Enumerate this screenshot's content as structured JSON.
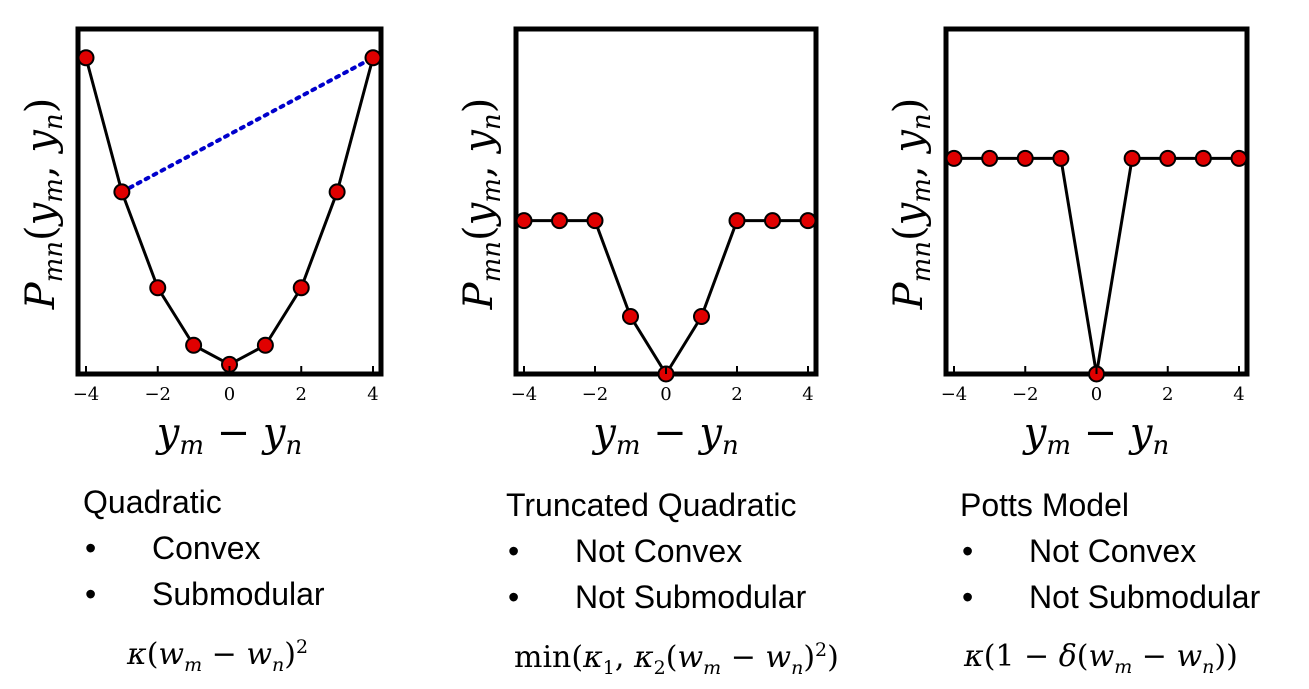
{
  "chart_data": [
    {
      "type": "line",
      "title": "",
      "xlabel": "y_m − y_n",
      "ylabel": "P_mn(y_m, y_n)",
      "xlim": [
        -4,
        4
      ],
      "xticks": [
        "−4",
        "−2",
        "0",
        "2",
        "4"
      ],
      "x": [
        -4,
        -3,
        -2,
        -1,
        0,
        1,
        2,
        3,
        4
      ],
      "series": [
        {
          "values": [
            16,
            9,
            4,
            1,
            0,
            1,
            4,
            9,
            16
          ]
        }
      ],
      "chord": {
        "from": [
          -3,
          9
        ],
        "to": [
          4,
          16
        ],
        "style": "dotted",
        "color": "#0000cc"
      },
      "ylim": [
        -0.5,
        17.5
      ],
      "grid": false,
      "yticks_visible": false
    },
    {
      "type": "line",
      "title": "",
      "xlabel": "y_m − y_n",
      "ylabel": "P_mn(y_m, y_n)",
      "xlim": [
        -4,
        4
      ],
      "xticks": [
        "−4",
        "−2",
        "0",
        "2",
        "4"
      ],
      "x": [
        -4,
        -3,
        -2,
        -1,
        0,
        1,
        2,
        3,
        4
      ],
      "series": [
        {
          "values": [
            4,
            4,
            4,
            1.5,
            0,
            1.5,
            4,
            4,
            4
          ]
        }
      ],
      "ylim": [
        0,
        9
      ],
      "grid": false,
      "yticks_visible": false
    },
    {
      "type": "line",
      "title": "",
      "xlabel": "y_m − y_n",
      "ylabel": "P_mn(y_m, y_n)",
      "xlim": [
        -4,
        4
      ],
      "xticks": [
        "−4",
        "−2",
        "0",
        "2",
        "4"
      ],
      "x": [
        -4,
        -3,
        -2,
        -1,
        0,
        1,
        2,
        3,
        4
      ],
      "series": [
        {
          "values": [
            1,
            1,
            1,
            1,
            0,
            1,
            1,
            1,
            1
          ]
        }
      ],
      "ylim": [
        0,
        1.6
      ],
      "grid": false,
      "yticks_visible": false
    }
  ],
  "style": {
    "marker_fill": "#e00000",
    "line_color": "#000000",
    "chord_color": "#0000cc"
  },
  "descriptions": [
    {
      "title": "Quadratic",
      "bullets": [
        "Convex",
        "Submodular"
      ]
    },
    {
      "title": "Truncated Quadratic",
      "bullets": [
        "Not Convex",
        "Not Submodular"
      ]
    },
    {
      "title": "Potts Model",
      "bullets": [
        "Not Convex",
        "Not Submodular"
      ]
    }
  ],
  "bullet_symbol": "•",
  "formulas": {
    "quadratic": {
      "kappa": "κ",
      "w": "w",
      "m": "m",
      "n": "n",
      "sq": "2"
    },
    "truncated": {
      "min": "min",
      "kappa": "κ",
      "one": "1",
      "two": "2",
      "w": "w",
      "m": "m",
      "n": "n",
      "sq": "2"
    },
    "potts": {
      "kappa": "κ",
      "one": "1",
      "delta": "δ",
      "w": "w",
      "m": "m",
      "n": "n"
    }
  }
}
